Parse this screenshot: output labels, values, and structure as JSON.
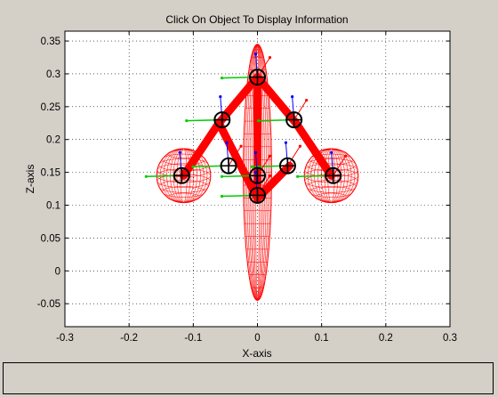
{
  "window": {
    "title": "Click On Object To Display Information",
    "info_panel_text": ""
  },
  "colors": {
    "figure_bg": "#d4d0c8",
    "axes_bg": "#ffffff",
    "body_mesh": "#ff0000",
    "axis_red": "#ff0000",
    "axis_green": "#00cc00",
    "axis_blue": "#0000ff",
    "joint": "#000000",
    "grid": "#000000"
  },
  "chart_data": {
    "type": "scatter",
    "title": "Click On Object To Display Information",
    "xlabel": "X-axis",
    "ylabel": "Z-axis",
    "xlim": [
      -0.3,
      0.3
    ],
    "ylim": [
      -0.085,
      0.365
    ],
    "xticks": [
      -0.3,
      -0.2,
      -0.1,
      0,
      0.1,
      0.2,
      0.3
    ],
    "xtick_labels": [
      "-0.3",
      "-0.2",
      "-0.1",
      "0",
      "0.1",
      "0.2",
      "0.3"
    ],
    "yticks": [
      -0.05,
      0,
      0.05,
      0.1,
      0.15,
      0.2,
      0.25,
      0.3,
      0.35
    ],
    "ytick_labels": [
      "-0.05",
      "0",
      "0.05",
      "0.1",
      "0.15",
      "0.2",
      "0.25",
      "0.3",
      "0.35"
    ],
    "grid": true,
    "torso_ellipsoid": {
      "cx": 0.0,
      "cz": 0.15,
      "rx": 0.022,
      "rz": 0.195
    },
    "hand_spheres": [
      {
        "cx": -0.115,
        "cz": 0.145,
        "r": 0.042
      },
      {
        "cx": 0.115,
        "cz": 0.145,
        "r": 0.042
      }
    ],
    "limb_segments": [
      {
        "from": [
          -0.115,
          0.145
        ],
        "to": [
          -0.06,
          0.225
        ]
      },
      {
        "from": [
          -0.06,
          0.225
        ],
        "to": [
          0.0,
          0.295
        ]
      },
      {
        "from": [
          0.0,
          0.295
        ],
        "to": [
          0.06,
          0.225
        ]
      },
      {
        "from": [
          0.06,
          0.225
        ],
        "to": [
          0.115,
          0.145
        ]
      },
      {
        "from": [
          -0.06,
          0.225
        ],
        "to": [
          0.0,
          0.11
        ]
      },
      {
        "from": [
          0.0,
          0.11
        ],
        "to": [
          0.05,
          0.16
        ]
      },
      {
        "from": [
          0.0,
          0.295
        ],
        "to": [
          0.0,
          0.11
        ]
      }
    ],
    "joints": [
      {
        "x": 0.0,
        "z": 0.295
      },
      {
        "x": -0.055,
        "z": 0.23
      },
      {
        "x": 0.057,
        "z": 0.23
      },
      {
        "x": -0.118,
        "z": 0.145
      },
      {
        "x": 0.118,
        "z": 0.145
      },
      {
        "x": -0.045,
        "z": 0.16
      },
      {
        "x": 0.047,
        "z": 0.16
      },
      {
        "x": 0.0,
        "z": 0.145
      },
      {
        "x": 0.0,
        "z": 0.115
      }
    ]
  }
}
